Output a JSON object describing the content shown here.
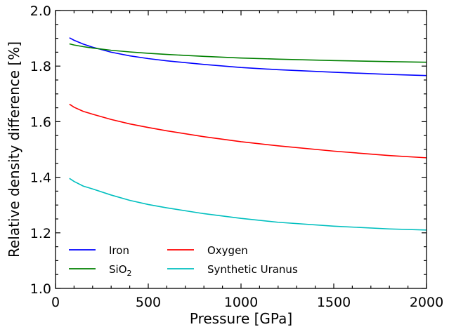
{
  "chart_data": {
    "type": "line",
    "xlabel": "Pressure [GPa]",
    "ylabel": "Relative density difference [%]",
    "xlim": [
      0,
      2000
    ],
    "ylim": [
      1.0,
      2.0
    ],
    "xticks": [
      0,
      500,
      1000,
      1500,
      2000
    ],
    "yticks": [
      1.0,
      1.2,
      1.4,
      1.6,
      1.8,
      2.0
    ],
    "xtick_labels": [
      "0",
      "500",
      "1000",
      "1500",
      "2000"
    ],
    "ytick_labels": [
      "1.0",
      "1.2",
      "1.4",
      "1.6",
      "1.8",
      "2.0"
    ],
    "grid": false,
    "legend_position": "bottom-left",
    "series": [
      {
        "name": "Iron",
        "color": "#0000ff",
        "x": [
          75,
          100,
          150,
          200,
          300,
          400,
          500,
          600,
          800,
          1000,
          1200,
          1500,
          1800,
          2000
        ],
        "y": [
          1.902,
          1.893,
          1.879,
          1.868,
          1.85,
          1.837,
          1.827,
          1.819,
          1.806,
          1.795,
          1.787,
          1.778,
          1.77,
          1.766
        ]
      },
      {
        "name": "SiO",
        "name_sub": "2",
        "color": "#008000",
        "x": [
          75,
          100,
          150,
          200,
          300,
          400,
          500,
          600,
          800,
          1000,
          1200,
          1500,
          1800,
          2000
        ],
        "y": [
          1.88,
          1.876,
          1.87,
          1.865,
          1.857,
          1.851,
          1.846,
          1.842,
          1.835,
          1.829,
          1.825,
          1.82,
          1.816,
          1.814
        ]
      },
      {
        "name": "Oxygen",
        "color": "#ff0000",
        "x": [
          75,
          100,
          150,
          200,
          300,
          400,
          500,
          600,
          800,
          1000,
          1200,
          1500,
          1800,
          2000
        ],
        "y": [
          1.663,
          1.652,
          1.637,
          1.627,
          1.608,
          1.592,
          1.579,
          1.567,
          1.546,
          1.528,
          1.513,
          1.494,
          1.478,
          1.47
        ]
      },
      {
        "name": "Synthetic Uranus",
        "color": "#00bfbf",
        "x": [
          75,
          100,
          150,
          200,
          300,
          400,
          500,
          600,
          800,
          1000,
          1200,
          1500,
          1800,
          2000
        ],
        "y": [
          1.396,
          1.385,
          1.368,
          1.358,
          1.336,
          1.317,
          1.302,
          1.29,
          1.269,
          1.252,
          1.238,
          1.224,
          1.214,
          1.21
        ]
      }
    ]
  }
}
